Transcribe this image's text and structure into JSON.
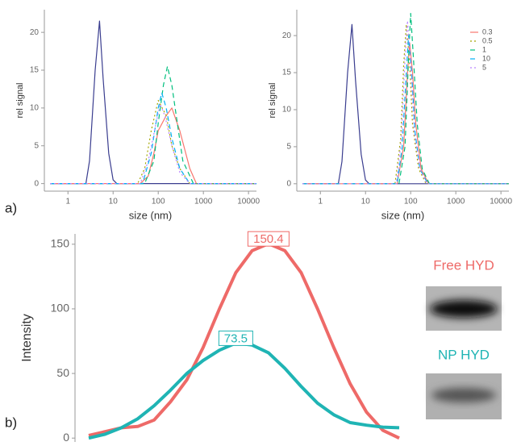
{
  "chart_data": [
    {
      "type": "line",
      "xlabel": "size (nm)",
      "ylabel": "rel signal",
      "log_x": true,
      "xlim": [
        0.3,
        15000
      ],
      "xticks": [
        1,
        10,
        100,
        1000,
        10000
      ],
      "ylim": [
        -1,
        23
      ],
      "yticks": [
        0,
        5,
        10,
        15,
        20
      ],
      "legend": false,
      "series": [
        {
          "color": "#3a3d8f",
          "dash": "solid",
          "x": [
            0.4,
            2.5,
            3,
            4,
            5,
            6,
            8,
            10,
            12,
            15000
          ],
          "values": [
            0,
            0,
            3,
            15,
            21.5,
            14,
            4,
            0.5,
            0,
            0
          ]
        },
        {
          "name": "0.3",
          "color": "#f8766d",
          "dash": "solid",
          "x": [
            0.4,
            40,
            60,
            80,
            100,
            150,
            200,
            300,
            500,
            700,
            15000
          ],
          "values": [
            0,
            0,
            1,
            4,
            7,
            9,
            10,
            7,
            2,
            0,
            0
          ]
        },
        {
          "name": "0.5",
          "color": "#a3a500",
          "dash": "dotted",
          "x": [
            0.4,
            35,
            50,
            70,
            100,
            150,
            200,
            300,
            500,
            15000
          ],
          "values": [
            0,
            0,
            2,
            7,
            11,
            9,
            5,
            2,
            0,
            0
          ]
        },
        {
          "name": "1",
          "color": "#00bf7d",
          "dash": "dashed",
          "x": [
            0.4,
            50,
            80,
            100,
            130,
            160,
            200,
            250,
            350,
            600,
            15000
          ],
          "values": [
            0,
            0,
            3,
            8,
            13,
            15.5,
            13,
            9,
            3,
            0,
            0
          ]
        },
        {
          "name": "10",
          "color": "#00b0f6",
          "dash": "dashed",
          "x": [
            0.4,
            45,
            70,
            100,
            120,
            150,
            200,
            300,
            500,
            15000
          ],
          "values": [
            0,
            0,
            4,
            10,
            12,
            10,
            6,
            2,
            0,
            0
          ]
        },
        {
          "name": "5",
          "color": "#b983ff",
          "dash": "dotted",
          "x": [
            0.4,
            40,
            60,
            90,
            110,
            140,
            200,
            300,
            500,
            15000
          ],
          "values": [
            0,
            0,
            3,
            8,
            10.5,
            9,
            5,
            1.5,
            0,
            0
          ]
        }
      ]
    },
    {
      "type": "line",
      "xlabel": "size (nm)",
      "ylabel": "rel signal",
      "log_x": true,
      "xlim": [
        0.3,
        15000
      ],
      "xticks": [
        1,
        10,
        100,
        1000,
        10000
      ],
      "ylim": [
        -1,
        23.5
      ],
      "yticks": [
        0,
        5,
        10,
        15,
        20
      ],
      "legend": "right",
      "series": [
        {
          "color": "#3a3d8f",
          "dash": "solid",
          "x": [
            0.4,
            2.5,
            3,
            4,
            5,
            6,
            8,
            10,
            12,
            15000
          ],
          "values": [
            0,
            0,
            3,
            15,
            21.5,
            14,
            4,
            0.5,
            0,
            0
          ]
        },
        {
          "name": "0.3",
          "color": "#f8766d",
          "dash": "solid",
          "x": [
            0.4,
            50,
            70,
            85,
            95,
            110,
            130,
            170,
            250,
            15000
          ],
          "values": [
            0,
            0,
            5,
            15,
            19,
            15,
            8,
            2,
            0,
            0
          ]
        },
        {
          "name": "0.5",
          "color": "#a3a500",
          "dash": "dotted",
          "x": [
            0.4,
            45,
            60,
            70,
            80,
            95,
            110,
            150,
            220,
            15000
          ],
          "values": [
            0,
            0,
            6,
            16,
            21.5,
            16,
            8,
            2,
            0,
            0
          ]
        },
        {
          "name": "1",
          "color": "#00bf7d",
          "dash": "dashed",
          "x": [
            0.4,
            55,
            75,
            90,
            100,
            115,
            140,
            180,
            260,
            15000
          ],
          "values": [
            0,
            0,
            5,
            17,
            23,
            17,
            8,
            2,
            0,
            0
          ]
        },
        {
          "name": "10",
          "color": "#00b0f6",
          "dash": "dashed",
          "x": [
            0.4,
            50,
            65,
            80,
            90,
            105,
            125,
            160,
            240,
            15000
          ],
          "values": [
            0,
            0,
            5,
            15,
            20,
            15,
            7,
            2,
            0,
            0
          ]
        },
        {
          "name": "5",
          "color": "#b983ff",
          "dash": "dotted",
          "x": [
            0.4,
            48,
            62,
            75,
            85,
            100,
            120,
            160,
            230,
            15000
          ],
          "values": [
            0,
            0,
            6,
            17,
            22,
            16,
            7,
            2,
            0,
            0
          ]
        }
      ]
    },
    {
      "type": "line",
      "ylabel": "Intensity",
      "xlim": [
        0,
        19
      ],
      "ylim": [
        -3,
        158
      ],
      "yticks": [
        0,
        50,
        100,
        150
      ],
      "legend": false,
      "image_labels": [
        "Free HYD",
        "NP HYD"
      ],
      "series": [
        {
          "color": "#ee6a68",
          "dash": "solid",
          "peak_label": "150.4",
          "x": [
            0,
            1,
            2,
            3,
            4,
            5,
            6,
            7,
            8,
            9,
            10,
            11,
            12,
            13,
            14,
            15,
            16,
            17,
            18,
            19
          ],
          "values": [
            2,
            5,
            8,
            9,
            14,
            28,
            45,
            70,
            100,
            128,
            145,
            150.4,
            145,
            128,
            100,
            70,
            42,
            20,
            6,
            0
          ]
        },
        {
          "color": "#1fb4b4",
          "dash": "solid",
          "peak_label": "73.5",
          "x": [
            0,
            1,
            2,
            3,
            4,
            5,
            6,
            7,
            8,
            9,
            10,
            11,
            12,
            13,
            14,
            15,
            16,
            17,
            18,
            19
          ],
          "values": [
            0,
            3,
            8,
            15,
            25,
            37,
            50,
            60,
            68,
            73.5,
            72,
            66,
            54,
            40,
            27,
            18,
            12,
            10,
            8.5,
            8
          ]
        }
      ]
    }
  ],
  "panel_labels": [
    "a)",
    "b)"
  ]
}
